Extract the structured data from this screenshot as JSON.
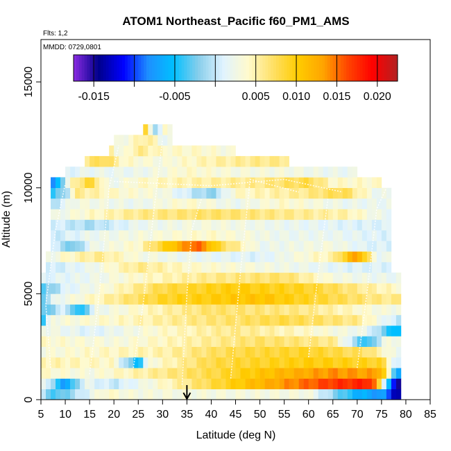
{
  "chart_data": {
    "type": "heatmap",
    "title": "ATOM1 Northeast_Pacific f60_PM1_AMS",
    "subtitle_flights": "Flts: 1,2",
    "subtitle_dates": "MMDD: 0729,0801",
    "xlabel": "Latitude (deg N)",
    "ylabel": "Altitude (m)",
    "xlim": [
      5,
      85
    ],
    "ylim": [
      0,
      17000
    ],
    "xticks": [
      "5",
      "10",
      "15",
      "20",
      "25",
      "30",
      "35",
      "40",
      "45",
      "50",
      "55",
      "60",
      "65",
      "70",
      "75",
      "80",
      "85"
    ],
    "yticks": [
      "0",
      "5000",
      "10000",
      "15000"
    ],
    "colorbar": {
      "min": -0.0175,
      "max": 0.0225,
      "tick_labels": [
        "-0.015",
        "-0.005",
        "0.005",
        "0.010",
        "0.015",
        "0.020"
      ],
      "tick_values": [
        -0.015,
        -0.005,
        0.005,
        0.01,
        0.015,
        0.02
      ],
      "colors": [
        "#8a2be2",
        "#00008b",
        "#0000ff",
        "#1e90ff",
        "#00bfff",
        "#87ceeb",
        "#e0f3ff",
        "#fffacd",
        "#ffe066",
        "#ffcc00",
        "#ffa500",
        "#ff4500",
        "#ff0000",
        "#b22222"
      ]
    },
    "marker_latitude": 35,
    "altitude_bin_m": 500,
    "lat_bin_deg": 1,
    "rows": [
      {
        "alt": 500,
        "lat_start": 5,
        "lat_end": 79,
        "base": 0.003,
        "vals": [
          [
            5,
            0.0
          ],
          [
            8,
            -0.004
          ],
          [
            18,
            0.004
          ],
          [
            24,
            0.003
          ],
          [
            40,
            0.003
          ],
          [
            60,
            0.003
          ],
          [
            70,
            -0.006
          ],
          [
            76,
            -0.008
          ],
          [
            78,
            -0.014
          ]
        ]
      },
      {
        "alt": 1000,
        "lat_start": 5,
        "lat_end": 79,
        "base": 0.006,
        "vals": [
          [
            5,
            0.004
          ],
          [
            10,
            -0.008
          ],
          [
            14,
            0.002
          ],
          [
            20,
            0.0
          ],
          [
            30,
            0.004
          ],
          [
            50,
            0.012
          ],
          [
            65,
            0.017
          ],
          [
            73,
            0.018
          ],
          [
            78,
            -0.015
          ]
        ]
      },
      {
        "alt": 1500,
        "lat_start": 5,
        "lat_end": 79,
        "base": 0.005,
        "vals": [
          [
            5,
            0.004
          ],
          [
            15,
            0.003
          ],
          [
            25,
            0.005
          ],
          [
            40,
            0.008
          ],
          [
            55,
            0.012
          ],
          [
            65,
            0.014
          ],
          [
            75,
            0.013
          ],
          [
            78,
            -0.006
          ]
        ]
      },
      {
        "alt": 2000,
        "lat_start": 5,
        "lat_end": 79,
        "base": 0.005,
        "vals": [
          [
            5,
            0.005
          ],
          [
            20,
            0.004
          ],
          [
            25,
            -0.006
          ],
          [
            27,
            0.003
          ],
          [
            40,
            0.008
          ],
          [
            60,
            0.01
          ],
          [
            75,
            0.009
          ],
          [
            78,
            0.0
          ]
        ]
      },
      {
        "alt": 2500,
        "lat_start": 5,
        "lat_end": 79,
        "base": 0.004,
        "vals": [
          [
            5,
            0.003
          ],
          [
            15,
            0.004
          ],
          [
            30,
            0.005
          ],
          [
            45,
            0.008
          ],
          [
            60,
            0.009
          ],
          [
            72,
            0.007
          ],
          [
            78,
            0.002
          ]
        ]
      },
      {
        "alt": 3000,
        "lat_start": 5,
        "lat_end": 79,
        "base": 0.004,
        "vals": [
          [
            5,
            0.004
          ],
          [
            20,
            0.003
          ],
          [
            35,
            0.005
          ],
          [
            50,
            0.007
          ],
          [
            65,
            0.006
          ],
          [
            72,
            -0.005
          ],
          [
            76,
            0.003
          ]
        ]
      },
      {
        "alt": 3500,
        "lat_start": 5,
        "lat_end": 79,
        "base": 0.004,
        "vals": [
          [
            5,
            0.003
          ],
          [
            15,
            0.001
          ],
          [
            30,
            0.004
          ],
          [
            45,
            0.006
          ],
          [
            60,
            0.004
          ],
          [
            72,
            0.002
          ],
          [
            78,
            -0.006
          ]
        ]
      },
      {
        "alt": 4000,
        "lat_start": 5,
        "lat_end": 79,
        "base": 0.004,
        "vals": [
          [
            5,
            -0.006
          ],
          [
            7,
            0.003
          ],
          [
            20,
            0.004
          ],
          [
            35,
            0.006
          ],
          [
            55,
            0.008
          ],
          [
            70,
            0.006
          ],
          [
            78,
            0.0
          ]
        ]
      },
      {
        "alt": 4500,
        "lat_start": 5,
        "lat_end": 79,
        "base": 0.004,
        "vals": [
          [
            5,
            -0.004
          ],
          [
            10,
            0.001
          ],
          [
            13,
            -0.006
          ],
          [
            16,
            0.002
          ],
          [
            25,
            0.004
          ],
          [
            40,
            0.007
          ],
          [
            60,
            0.006
          ],
          [
            75,
            0.003
          ]
        ]
      },
      {
        "alt": 5000,
        "lat_start": 5,
        "lat_end": 79,
        "base": 0.005,
        "vals": [
          [
            5,
            -0.003
          ],
          [
            8,
            0.002
          ],
          [
            15,
            0.004
          ],
          [
            30,
            0.009
          ],
          [
            50,
            0.011
          ],
          [
            65,
            0.008
          ],
          [
            75,
            0.006
          ]
        ]
      },
      {
        "alt": 5500,
        "lat_start": 5,
        "lat_end": 79,
        "base": 0.005,
        "vals": [
          [
            5,
            -0.004
          ],
          [
            10,
            0.001
          ],
          [
            20,
            0.004
          ],
          [
            30,
            0.008
          ],
          [
            45,
            0.01
          ],
          [
            60,
            0.009
          ],
          [
            70,
            0.006
          ],
          [
            78,
            0.004
          ]
        ]
      },
      {
        "alt": 6000,
        "lat_start": 5,
        "lat_end": 79,
        "base": 0.004,
        "vals": [
          [
            5,
            0.001
          ],
          [
            15,
            0.002
          ],
          [
            25,
            0.004
          ],
          [
            40,
            0.006
          ],
          [
            55,
            0.007
          ],
          [
            65,
            0.003
          ],
          [
            75,
            0.002
          ]
        ]
      },
      {
        "alt": 6500,
        "lat_start": 6,
        "lat_end": 77,
        "base": 0.004,
        "vals": [
          [
            6,
            0.0
          ],
          [
            15,
            0.002
          ],
          [
            25,
            0.006
          ],
          [
            35,
            0.004
          ],
          [
            50,
            0.003
          ],
          [
            60,
            0.002
          ],
          [
            70,
            0.001
          ]
        ]
      },
      {
        "alt": 7000,
        "lat_start": 6,
        "lat_end": 77,
        "base": 0.003,
        "vals": [
          [
            6,
            0.002
          ],
          [
            10,
            0.004
          ],
          [
            17,
            0.006
          ],
          [
            25,
            0.003
          ],
          [
            35,
            0.002
          ],
          [
            50,
            0.001
          ],
          [
            65,
            0.005
          ],
          [
            70,
            0.014
          ],
          [
            74,
            0.002
          ]
        ]
      },
      {
        "alt": 7500,
        "lat_start": 7,
        "lat_end": 77,
        "base": 0.003,
        "vals": [
          [
            7,
            0.001
          ],
          [
            12,
            -0.003
          ],
          [
            15,
            0.002
          ],
          [
            25,
            0.004
          ],
          [
            37,
            0.016
          ],
          [
            42,
            0.008
          ],
          [
            50,
            0.002
          ],
          [
            65,
            0.003
          ],
          [
            72,
            0.001
          ]
        ]
      },
      {
        "alt": 8000,
        "lat_start": 7,
        "lat_end": 77,
        "base": 0.003,
        "vals": [
          [
            7,
            0.0
          ],
          [
            15,
            0.002
          ],
          [
            25,
            0.003
          ],
          [
            40,
            0.004
          ],
          [
            55,
            0.002
          ],
          [
            65,
            0.002
          ],
          [
            75,
            0.001
          ]
        ]
      },
      {
        "alt": 8500,
        "lat_start": 7,
        "lat_end": 77,
        "base": 0.002,
        "vals": [
          [
            7,
            0.001
          ],
          [
            15,
            -0.001
          ],
          [
            25,
            0.002
          ],
          [
            40,
            0.003
          ],
          [
            55,
            0.002
          ],
          [
            70,
            0.001
          ]
        ]
      },
      {
        "alt": 9000,
        "lat_start": 7,
        "lat_end": 77,
        "base": 0.003,
        "vals": [
          [
            7,
            0.002
          ],
          [
            15,
            0.004
          ],
          [
            25,
            0.006
          ],
          [
            40,
            0.007
          ],
          [
            55,
            0.006
          ],
          [
            68,
            0.005
          ],
          [
            75,
            0.002
          ]
        ]
      },
      {
        "alt": 9500,
        "lat_start": 7,
        "lat_end": 77,
        "base": 0.003,
        "vals": [
          [
            7,
            -0.001
          ],
          [
            12,
            0.003
          ],
          [
            25,
            0.002
          ],
          [
            35,
            0.004
          ],
          [
            45,
            0.002
          ],
          [
            55,
            0.004
          ],
          [
            68,
            0.002
          ]
        ]
      },
      {
        "alt": 10000,
        "lat_start": 7,
        "lat_end": 77,
        "base": 0.003,
        "vals": [
          [
            7,
            -0.004
          ],
          [
            10,
            -0.002
          ],
          [
            12,
            0.006
          ],
          [
            20,
            0.004
          ],
          [
            30,
            0.003
          ],
          [
            40,
            -0.002
          ],
          [
            45,
            0.004
          ],
          [
            60,
            0.006
          ],
          [
            67,
            0.008
          ],
          [
            74,
            0.002
          ]
        ]
      },
      {
        "alt": 10500,
        "lat_start": 7,
        "lat_end": 75,
        "base": 0.004,
        "vals": [
          [
            7,
            -0.011
          ],
          [
            11,
            0.004
          ],
          [
            15,
            0.009
          ],
          [
            19,
            0.002
          ],
          [
            25,
            0.004
          ],
          [
            35,
            0.005
          ],
          [
            50,
            0.006
          ],
          [
            60,
            0.008
          ],
          [
            65,
            0.004
          ]
        ]
      },
      {
        "alt": 11000,
        "lat_start": 10,
        "lat_end": 70,
        "base": 0.003,
        "vals": [
          [
            10,
            0.001
          ],
          [
            15,
            0.002
          ],
          [
            25,
            0.002
          ],
          [
            35,
            0.004
          ],
          [
            45,
            0.003
          ],
          [
            55,
            0.003
          ],
          [
            65,
            0.002
          ]
        ]
      },
      {
        "alt": 11500,
        "lat_start": 14,
        "lat_end": 56,
        "base": 0.005,
        "vals": [
          [
            14,
            0.006
          ],
          [
            18,
            0.008
          ],
          [
            22,
            0.004
          ],
          [
            30,
            0.003
          ],
          [
            40,
            0.005
          ],
          [
            50,
            0.006
          ]
        ]
      },
      {
        "alt": 12000,
        "lat_start": 19,
        "lat_end": 45,
        "base": 0.004,
        "vals": [
          [
            19,
            0.007
          ],
          [
            21,
            0.002
          ],
          [
            25,
            0.006
          ],
          [
            30,
            0.004
          ],
          [
            38,
            0.004
          ],
          [
            44,
            0.003
          ]
        ]
      },
      {
        "alt": 12500,
        "lat_start": 20,
        "lat_end": 32,
        "base": 0.003,
        "vals": [
          [
            20,
            0.002
          ],
          [
            24,
            0.004
          ],
          [
            27,
            0.006
          ],
          [
            30,
            0.002
          ]
        ]
      },
      {
        "alt": 13000,
        "lat_start": 26,
        "lat_end": 32,
        "base": 0.003,
        "vals": [
          [
            26,
            0.012
          ],
          [
            27,
            0.004
          ],
          [
            29,
            -0.002
          ],
          [
            30,
            0.004
          ],
          [
            31,
            0.003
          ]
        ]
      }
    ]
  }
}
